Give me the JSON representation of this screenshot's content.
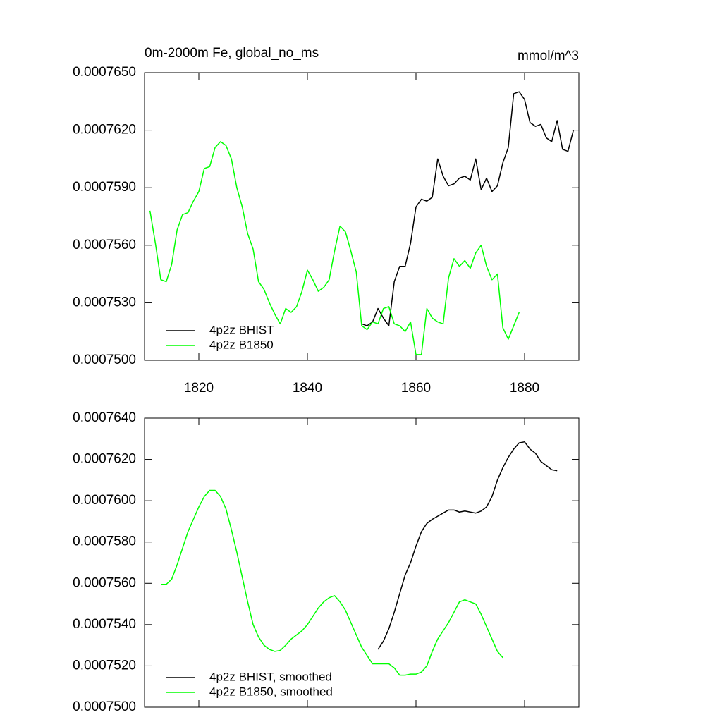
{
  "chart_data": [
    {
      "type": "line",
      "title": "0m-2000m Fe, global_no_ms",
      "subtitle": "mmol/m^3",
      "x": [
        1811,
        1812,
        1813,
        1814,
        1815,
        1816,
        1817,
        1818,
        1819,
        1820,
        1821,
        1822,
        1823,
        1824,
        1825,
        1826,
        1827,
        1828,
        1829,
        1830,
        1831,
        1832,
        1833,
        1834,
        1835,
        1836,
        1837,
        1838,
        1839,
        1840,
        1841,
        1842,
        1843,
        1844,
        1845,
        1846,
        1847,
        1848,
        1849,
        1850,
        1851,
        1852,
        1853,
        1854,
        1855,
        1856,
        1857,
        1858,
        1859,
        1860,
        1861,
        1862,
        1863,
        1864,
        1865,
        1866,
        1867,
        1868,
        1869,
        1870,
        1871,
        1872,
        1873,
        1874,
        1875,
        1876,
        1877,
        1878,
        1879,
        1880,
        1881,
        1882,
        1883,
        1884,
        1885,
        1886,
        1887,
        1888,
        1889
      ],
      "series": [
        {
          "name": "4p2z BHIST",
          "color": "#000000",
          "values": [
            null,
            null,
            null,
            null,
            null,
            null,
            null,
            null,
            null,
            null,
            null,
            null,
            null,
            null,
            null,
            null,
            null,
            null,
            null,
            null,
            null,
            null,
            null,
            null,
            null,
            null,
            null,
            null,
            null,
            null,
            null,
            null,
            null,
            null,
            null,
            null,
            null,
            null,
            null,
            0.0007519,
            0.0007518,
            0.000752,
            0.0007527,
            0.0007522,
            0.0007518,
            0.0007541,
            0.0007549,
            0.0007549,
            0.0007561,
            0.000758,
            0.0007584,
            0.0007583,
            0.0007585,
            0.0007605,
            0.0007596,
            0.0007591,
            0.0007592,
            0.0007595,
            0.0007596,
            0.0007594,
            0.0007605,
            0.0007589,
            0.0007595,
            0.0007588,
            0.0007591,
            0.0007603,
            0.0007611,
            0.0007639,
            0.000764,
            0.0007636,
            0.0007624,
            0.0007622,
            0.0007623,
            0.0007616,
            0.0007614,
            0.0007625,
            0.000761,
            0.0007609,
            0.000762
          ]
        },
        {
          "name": "4p2z B1850",
          "color": "#00ff00",
          "values": [
            0.0007578,
            0.0007561,
            0.0007542,
            0.0007541,
            0.000755,
            0.0007568,
            0.0007576,
            0.0007577,
            0.0007583,
            0.0007588,
            0.00076,
            0.0007601,
            0.0007611,
            0.0007614,
            0.0007612,
            0.0007605,
            0.000759,
            0.000758,
            0.0007566,
            0.0007558,
            0.0007541,
            0.0007537,
            0.000753,
            0.0007524,
            0.0007519,
            0.0007527,
            0.0007525,
            0.0007528,
            0.0007536,
            0.0007547,
            0.0007542,
            0.0007536,
            0.0007538,
            0.0007542,
            0.0007557,
            0.000757,
            0.0007567,
            0.0007557,
            0.0007546,
            0.0007518,
            0.0007516,
            0.000752,
            0.0007519,
            0.0007527,
            0.0007528,
            0.0007519,
            0.0007518,
            0.0007515,
            0.000752,
            0.0007503,
            0.0007503,
            0.0007527,
            0.0007522,
            0.000752,
            0.0007519,
            0.0007543,
            0.0007553,
            0.0007549,
            0.0007552,
            0.0007548,
            0.0007556,
            0.000756,
            0.0007549,
            0.0007542,
            0.0007545,
            0.0007517,
            0.0007511,
            0.0007518,
            0.0007525,
            null,
            null,
            null,
            null,
            null,
            null,
            null,
            null,
            null,
            null
          ]
        }
      ],
      "xlim": [
        1810,
        1890
      ],
      "xticks": [
        1820,
        1840,
        1860,
        1880
      ],
      "ylim": [
        0.00075,
        0.000765
      ],
      "yticks": [
        {
          "value": 0.00075,
          "label": "0.0007500"
        },
        {
          "value": 0.000753,
          "label": "0.0007530"
        },
        {
          "value": 0.000756,
          "label": "0.0007560"
        },
        {
          "value": 0.000759,
          "label": "0.0007590"
        },
        {
          "value": 0.000762,
          "label": "0.0007620"
        },
        {
          "value": 0.000765,
          "label": "0.0007650"
        }
      ],
      "legend": "lower left"
    },
    {
      "type": "line",
      "x": [
        1813,
        1814,
        1815,
        1816,
        1817,
        1818,
        1819,
        1820,
        1821,
        1822,
        1823,
        1824,
        1825,
        1826,
        1827,
        1828,
        1829,
        1830,
        1831,
        1832,
        1833,
        1834,
        1835,
        1836,
        1837,
        1838,
        1839,
        1840,
        1841,
        1842,
        1843,
        1844,
        1845,
        1846,
        1847,
        1848,
        1849,
        1850,
        1851,
        1852,
        1853,
        1854,
        1855,
        1856,
        1857,
        1858,
        1859,
        1860,
        1861,
        1862,
        1863,
        1864,
        1865,
        1866,
        1867,
        1868,
        1869,
        1870,
        1871,
        1872,
        1873,
        1874,
        1875,
        1876,
        1877,
        1878,
        1879,
        1880,
        1881,
        1882,
        1883,
        1884,
        1885,
        1886
      ],
      "series": [
        {
          "name": "4p2z BHIST, smoothed",
          "color": "#000000",
          "values": [
            null,
            null,
            null,
            null,
            null,
            null,
            null,
            null,
            null,
            null,
            null,
            null,
            null,
            null,
            null,
            null,
            null,
            null,
            null,
            null,
            null,
            null,
            null,
            null,
            null,
            null,
            null,
            null,
            null,
            null,
            null,
            null,
            null,
            null,
            null,
            null,
            null,
            null,
            null,
            null,
            0.0007528,
            0.0007532,
            0.0007538,
            0.0007546,
            0.0007555,
            0.0007564,
            0.000757,
            0.0007578,
            0.0007585,
            0.0007589,
            0.0007591,
            0.00075925,
            0.0007594,
            0.00075955,
            0.00075955,
            0.00075945,
            0.0007595,
            0.00075945,
            0.0007594,
            0.0007595,
            0.0007597,
            0.0007602,
            0.000761,
            0.0007616,
            0.0007621,
            0.0007625,
            0.0007628,
            0.00076285,
            0.0007625,
            0.0007623,
            0.0007619,
            0.0007617,
            0.0007615,
            0.00076145
          ]
        },
        {
          "name": "4p2z B1850, smoothed",
          "color": "#00ff00",
          "values": [
            0.00075595,
            0.00075595,
            0.0007562,
            0.0007569,
            0.0007577,
            0.0007585,
            0.0007591,
            0.0007597,
            0.0007602,
            0.0007605,
            0.0007605,
            0.0007602,
            0.0007596,
            0.0007586,
            0.0007575,
            0.0007563,
            0.0007551,
            0.000754,
            0.0007534,
            0.000753,
            0.0007528,
            0.0007527,
            0.00075275,
            0.000753,
            0.0007533,
            0.0007535,
            0.0007537,
            0.000754,
            0.0007544,
            0.0007548,
            0.0007551,
            0.0007553,
            0.0007554,
            0.0007551,
            0.0007547,
            0.0007541,
            0.0007535,
            0.0007529,
            0.0007525,
            0.0007521,
            0.0007521,
            0.0007521,
            0.0007521,
            0.0007519,
            0.00075155,
            0.00075155,
            0.0007516,
            0.0007516,
            0.0007517,
            0.000752,
            0.0007527,
            0.0007533,
            0.0007537,
            0.0007541,
            0.0007546,
            0.0007551,
            0.0007552,
            0.0007551,
            0.000755,
            0.0007545,
            0.0007539,
            0.0007533,
            0.0007527,
            0.0007524,
            null,
            null,
            null,
            null,
            null,
            null,
            null,
            null,
            null,
            null
          ]
        }
      ],
      "xlim": [
        1810,
        1890
      ],
      "xticks": [
        1820,
        1840,
        1860,
        1880
      ],
      "ylim": [
        0.00075,
        0.000764
      ],
      "yticks": [
        {
          "value": 0.00075,
          "label": "0.0007500"
        },
        {
          "value": 0.000752,
          "label": "0.0007520"
        },
        {
          "value": 0.000754,
          "label": "0.0007540"
        },
        {
          "value": 0.000756,
          "label": "0.0007560"
        },
        {
          "value": 0.000758,
          "label": "0.0007580"
        },
        {
          "value": 0.00076,
          "label": "0.0007600"
        },
        {
          "value": 0.000762,
          "label": "0.0007620"
        },
        {
          "value": 0.000764,
          "label": "0.0007640"
        }
      ],
      "legend": "lower left"
    }
  ]
}
